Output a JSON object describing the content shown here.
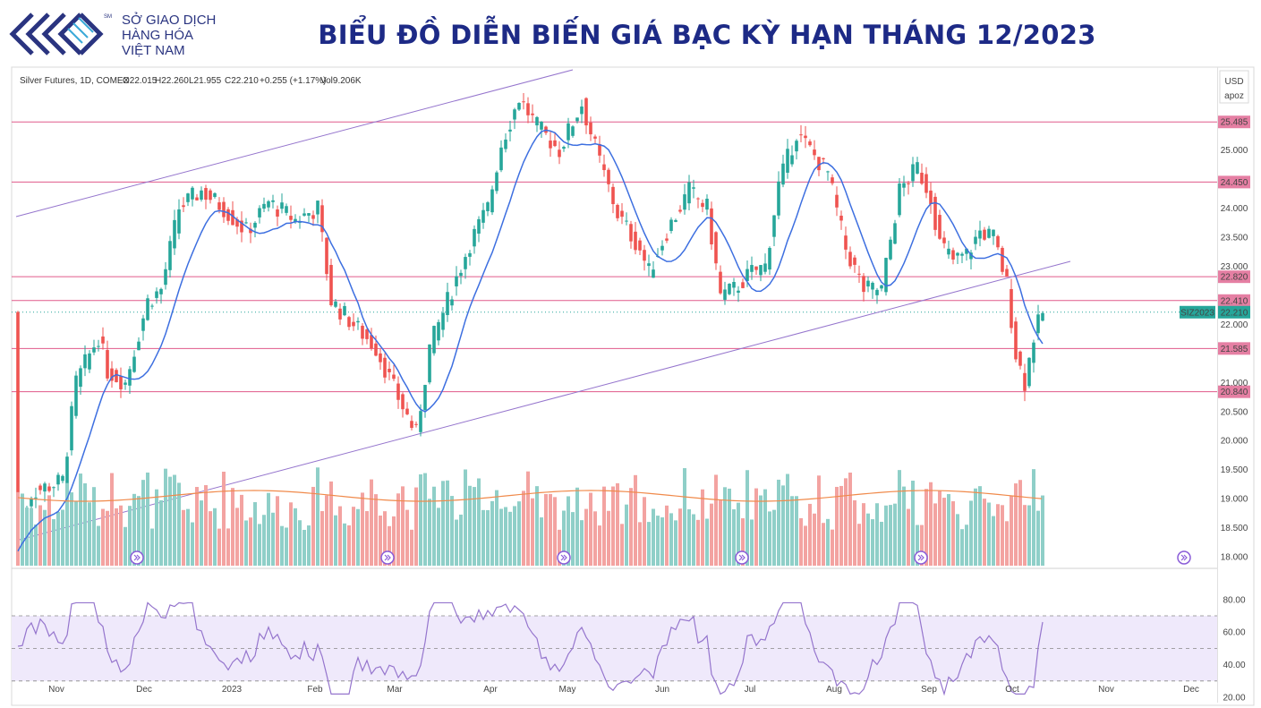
{
  "header": {
    "logo_lines": [
      "SỞ GIAO DỊCH",
      "HÀNG HÓA",
      "VIỆT NAM"
    ],
    "logo_mark": "SM",
    "title": "BIỂU ĐỒ DIỄN BIẾN GIÁ BẠC KỲ HẠN THÁNG 12/2023",
    "brand_color": "#2a3480"
  },
  "legend": {
    "symbol": "Silver Futures, 1D, COMEX",
    "open": "O22.015",
    "high": "H22.260",
    "low": "L21.955",
    "close": "C22.210",
    "change": "+0.255 (+1.17%)",
    "volume": "Vol9.206K"
  },
  "scale": {
    "currency": "USD",
    "mode": "apoz"
  },
  "chart_data": {
    "type": "candlestick",
    "y_ticks": [
      "25.000",
      "24.000",
      "23.500",
      "23.000",
      "22.000",
      "21.000",
      "20.500",
      "20.000",
      "19.500",
      "19.000",
      "18.500",
      "18.000"
    ],
    "ylim": [
      17.99,
      25.88
    ],
    "x_ticks": [
      "Nov",
      "Dec",
      "2023",
      "Feb",
      "Mar",
      "Apr",
      "May",
      "Jun",
      "Jul",
      "Aug",
      "Sep",
      "Oct",
      "Nov",
      "Dec"
    ],
    "horizontal_levels": [
      {
        "value": 25.485,
        "label": "25.485"
      },
      {
        "value": 24.45,
        "label": "24.450"
      },
      {
        "value": 22.82,
        "label": "22.820"
      },
      {
        "value": 22.41,
        "label": "22.410"
      },
      {
        "value": 21.585,
        "label": "21.585"
      },
      {
        "value": 20.84,
        "label": "20.840"
      }
    ],
    "last_price": {
      "symbol": "SIZ2023",
      "value": 22.21,
      "label": "22.210"
    },
    "colors": {
      "up": "#26a69a",
      "down": "#ef5350",
      "level": "#e05a8a",
      "trend": "#9575cd",
      "ma": "#3d6fe0",
      "volume_ma": "#f08a4b",
      "rsi": "#9575cd"
    },
    "rsi": {
      "ticks": [
        "80.00",
        "60.00",
        "40.00",
        "20.00"
      ],
      "upper": 70,
      "lower": 30
    }
  }
}
